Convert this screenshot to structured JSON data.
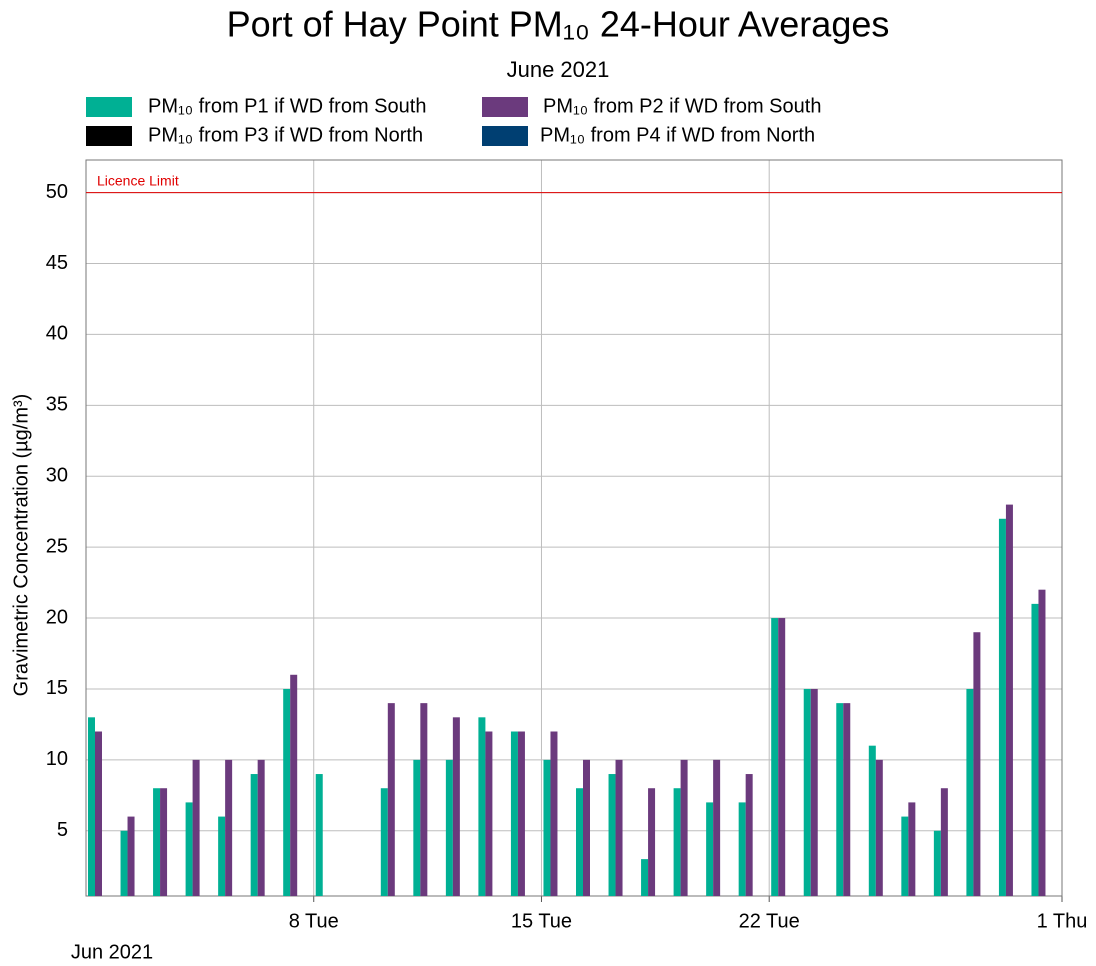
{
  "chart_data": {
    "type": "bar",
    "title": "Port of Hay Point PM₁₀ 24-Hour Averages",
    "subtitle": "June 2021",
    "y_label": "Gravimetric Concentration (µg/m³)",
    "x_sublabel": "Jun 2021",
    "x": [
      "2021-06-01",
      "2021-06-02",
      "2021-06-03",
      "2021-06-04",
      "2021-06-05",
      "2021-06-06",
      "2021-06-07",
      "2021-06-08",
      "2021-06-09",
      "2021-06-10",
      "2021-06-11",
      "2021-06-12",
      "2021-06-13",
      "2021-06-14",
      "2021-06-15",
      "2021-06-16",
      "2021-06-17",
      "2021-06-18",
      "2021-06-19",
      "2021-06-20",
      "2021-06-21",
      "2021-06-22",
      "2021-06-23",
      "2021-06-24",
      "2021-06-25",
      "2021-06-26",
      "2021-06-27",
      "2021-06-28",
      "2021-06-29",
      "2021-06-30"
    ],
    "xlim": [
      "2021-06-01",
      "2021-07-01"
    ],
    "xticks": [
      {
        "value": "2021-06-08",
        "label": "8 Tue"
      },
      {
        "value": "2021-06-15",
        "label": "15 Tue"
      },
      {
        "value": "2021-06-22",
        "label": "22 Tue"
      },
      {
        "value": "2021-07-01",
        "label": "1 Thu"
      }
    ],
    "ylim": [
      0.4,
      52.3
    ],
    "yticks": [
      5,
      10,
      15,
      20,
      25,
      30,
      35,
      40,
      45,
      50
    ],
    "grid": true,
    "reference_lines": [
      {
        "value": 50,
        "label": "Licence Limit",
        "color": "#e00000"
      }
    ],
    "series": [
      {
        "name": "PM₁₀ from P1 if WD from South",
        "color": "#00b094",
        "values": [
          13,
          5,
          8,
          7,
          6,
          9,
          15,
          9,
          null,
          8,
          10,
          10,
          13,
          12,
          10,
          8,
          9,
          3,
          8,
          7,
          7,
          20,
          15,
          14,
          11,
          6,
          5,
          15,
          27,
          21
        ]
      },
      {
        "name": "PM₁₀ from P2 if WD from South",
        "color": "#6b3a7d",
        "values": [
          12,
          6,
          8,
          10,
          10,
          10,
          16,
          null,
          null,
          14,
          14,
          13,
          12,
          12,
          12,
          10,
          10,
          8,
          10,
          10,
          9,
          20,
          15,
          14,
          10,
          7,
          8,
          19,
          28,
          22
        ]
      },
      {
        "name": "PM₁₀ from P3 if WD from North",
        "color": "#000000",
        "values": [
          null,
          null,
          null,
          null,
          null,
          null,
          null,
          null,
          null,
          null,
          null,
          null,
          null,
          null,
          null,
          null,
          null,
          null,
          null,
          null,
          null,
          null,
          null,
          null,
          null,
          null,
          null,
          null,
          null,
          null
        ]
      },
      {
        "name": "PM₁₀ from P4 if WD from North",
        "color": "#003f72",
        "values": [
          null,
          null,
          null,
          null,
          null,
          null,
          null,
          null,
          null,
          null,
          null,
          null,
          null,
          null,
          null,
          null,
          null,
          null,
          null,
          null,
          null,
          null,
          null,
          null,
          null,
          null,
          null,
          null,
          null,
          null
        ]
      }
    ]
  }
}
